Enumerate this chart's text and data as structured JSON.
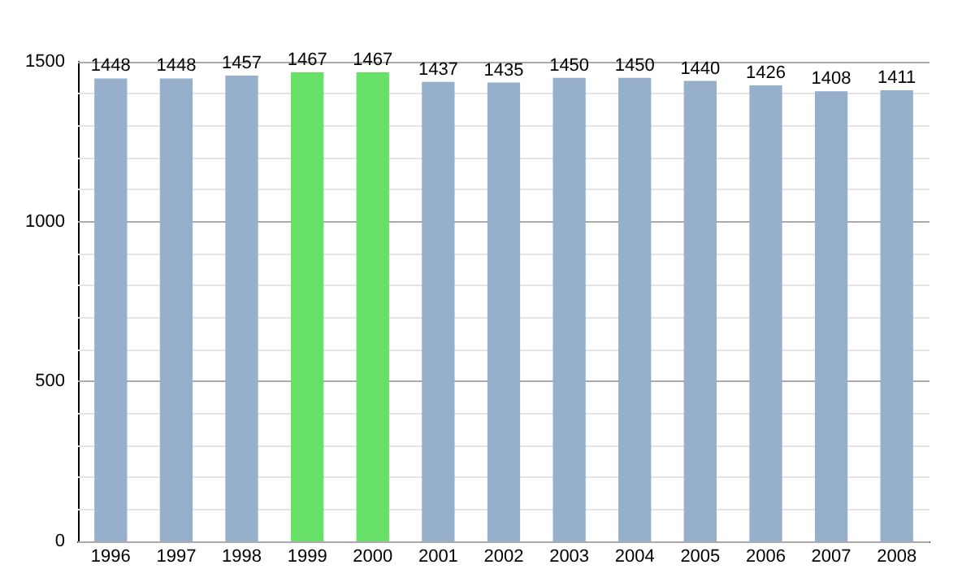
{
  "chart_data": {
    "type": "bar",
    "categories": [
      "1996",
      "1997",
      "1998",
      "1999",
      "2000",
      "2001",
      "2002",
      "2003",
      "2004",
      "2005",
      "2006",
      "2007",
      "2008"
    ],
    "values": [
      1448,
      1448,
      1457,
      1467,
      1467,
      1437,
      1435,
      1450,
      1450,
      1440,
      1426,
      1408,
      1411
    ],
    "colors": [
      "#96b0cc",
      "#96b0cc",
      "#96b0cc",
      "#66e066",
      "#66e066",
      "#96b0cc",
      "#96b0cc",
      "#96b0cc",
      "#96b0cc",
      "#96b0cc",
      "#96b0cc",
      "#96b0cc",
      "#96b0cc"
    ],
    "ylim": [
      0,
      1500
    ],
    "yticks": [
      0,
      {
        "value": 100,
        "label": null
      },
      {
        "value": 200,
        "label": null
      },
      {
        "value": 300,
        "label": null
      },
      {
        "value": 400,
        "label": null
      },
      500,
      {
        "value": 600,
        "label": null
      },
      {
        "value": 700,
        "label": null
      },
      {
        "value": 800,
        "label": null
      },
      {
        "value": 900,
        "label": null
      },
      1000,
      {
        "value": 1100,
        "label": null
      },
      {
        "value": 1200,
        "label": null
      },
      {
        "value": 1300,
        "label": null
      },
      {
        "value": 1400,
        "label": null
      },
      1500
    ],
    "grid": true,
    "data_labels": true
  }
}
